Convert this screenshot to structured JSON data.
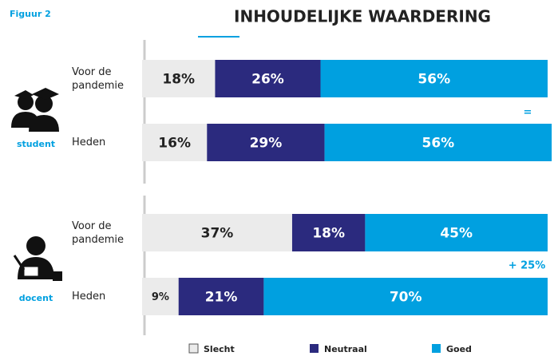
{
  "chart_data": {
    "type": "stacked_barh",
    "figure_label": "Figuur 2",
    "title": "INHOUDELIJKE WAARDERING",
    "groups": [
      "student",
      "docent"
    ],
    "categories": [
      "Voor de pandemie",
      "Heden",
      "Voor de pandemie",
      "Heden"
    ],
    "xlim": [
      0,
      100
    ],
    "series": [
      {
        "name": "Slecht",
        "color": "#ebebeb",
        "values": [
          18,
          16,
          37,
          9
        ],
        "value_labels": [
          "18%",
          "16%",
          "37%",
          "9%"
        ]
      },
      {
        "name": "Neutraal",
        "color": "#2b2a7e",
        "values": [
          26,
          29,
          18,
          21
        ],
        "value_labels": [
          "26%",
          "29%",
          "18%",
          "21%"
        ]
      },
      {
        "name": "Goed",
        "color": "#00a0e0",
        "values": [
          56,
          56,
          45,
          70
        ],
        "value_labels": [
          "56%",
          "56%",
          "45%",
          "70%"
        ]
      }
    ],
    "annotations": [
      "=",
      "+ 25%"
    ]
  }
}
